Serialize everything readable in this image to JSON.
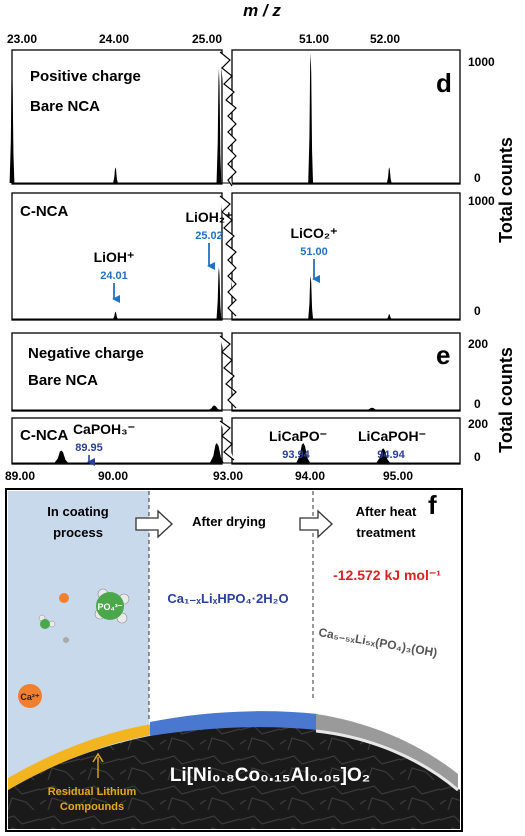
{
  "axis_label_top": "m / z",
  "y_axis_label": "Total counts",
  "charge_labels": {
    "positive": "Positive charge",
    "negative": "Negative charge"
  },
  "colors": {
    "annotation_blue": "#1f72c4",
    "annotation_navy": "#2a3f9a",
    "energy_red": "#e02020",
    "highlight_blue": "#4a78d0",
    "coating_bg": "#c9d9ec"
  },
  "chart_data": [
    {
      "type": "area",
      "panel": "d",
      "subplot": "Bare NCA",
      "subtitle": "Positive charge",
      "x_ticks_left": [
        "23.00",
        "24.00",
        "25.00"
      ],
      "x_ticks_right": [
        "51.00",
        "52.00"
      ],
      "xlim_left": [
        23.0,
        25.05
      ],
      "xlim_right": [
        50.0,
        52.9
      ],
      "ylim": [
        0,
        1000
      ],
      "y_ticks": [
        "1000",
        "0"
      ],
      "peaks": [
        {
          "x": 23.0,
          "y": 900
        },
        {
          "x": 24.01,
          "y": 120
        },
        {
          "x": 25.02,
          "y": 880
        },
        {
          "x": 51.0,
          "y": 1000
        },
        {
          "x": 52.0,
          "y": 120
        }
      ]
    },
    {
      "type": "area",
      "panel": "d",
      "subplot": "C-NCA",
      "xlim_left": [
        23.0,
        25.05
      ],
      "xlim_right": [
        50.0,
        52.9
      ],
      "ylim": [
        0,
        1000
      ],
      "y_ticks": [
        "1000",
        "0"
      ],
      "peaks": [
        {
          "x": 24.01,
          "y": 60,
          "label": "LiOH⁺",
          "value_label": "24.01"
        },
        {
          "x": 25.02,
          "y": 420,
          "label": "LiOH₂⁺",
          "value_label": "25.02"
        },
        {
          "x": 51.0,
          "y": 350,
          "label": "LiCO₂⁺",
          "value_label": "51.00"
        },
        {
          "x": 52.0,
          "y": 40
        }
      ]
    },
    {
      "type": "area",
      "panel": "e",
      "subplot": "Bare NCA",
      "subtitle": "Negative charge",
      "xlim_left": [
        89.0,
        93.05
      ],
      "xlim_right": [
        93.05,
        95.9
      ],
      "ylim": [
        0,
        200
      ],
      "y_ticks": [
        "200",
        "0"
      ],
      "peaks": [
        {
          "x": 92.9,
          "y": 12
        },
        {
          "x": 94.8,
          "y": 6
        }
      ]
    },
    {
      "type": "area",
      "panel": "e",
      "subplot": "C-NCA",
      "x_ticks_left": [
        "89.00",
        "90.00",
        "93.00"
      ],
      "x_ticks_right": [
        "94.00",
        "95.00"
      ],
      "xlim_left": [
        89.0,
        93.05
      ],
      "xlim_right": [
        93.05,
        95.9
      ],
      "ylim": [
        0,
        200
      ],
      "y_ticks": [
        "200",
        "0"
      ],
      "peaks": [
        {
          "x": 89.95,
          "y": 60,
          "label": "CaPOH₃⁻",
          "value_label": "89.95"
        },
        {
          "x": 92.95,
          "y": 95
        },
        {
          "x": 93.94,
          "y": 95,
          "label": "LiCaPO⁻",
          "value_label": "93.94"
        },
        {
          "x": 94.94,
          "y": 70,
          "label": "LiCaPOH⁻",
          "value_label": "94.94"
        }
      ]
    }
  ],
  "schematic": {
    "panel": "f",
    "stage1": "In coating process",
    "stage2": "After drying",
    "stage3": "After heat treatment",
    "energy": "-12.572 kJ mol⁻¹",
    "coating_formula": "Ca₁₋ₓLiₓHPO₄·2H₂O",
    "heat_formula": "Ca₅₋₅ₓLi₅ₓ(PO₄)₃(OH)",
    "core_formula": "Li[Ni₀.₈Co₀.₁₅Al₀.₀₅]O₂",
    "po4_ion": "PO₄³⁻",
    "ca_ion": "Ca²⁺",
    "residual_label_1": "Residual Lithium",
    "residual_label_2": "Compounds"
  }
}
